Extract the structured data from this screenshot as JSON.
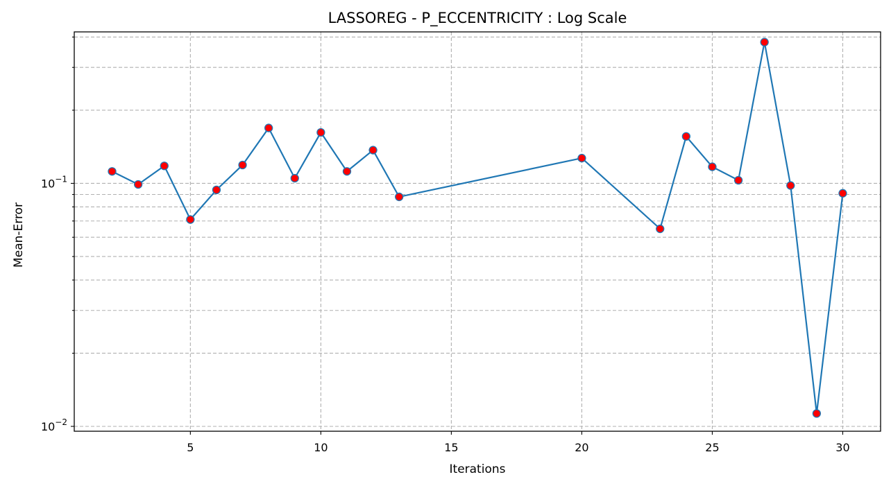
{
  "chart_data": {
    "type": "line",
    "title": "LASSOREG - P_ECCENTRICITY : Log Scale",
    "xlabel": "Iterations",
    "ylabel": "Mean-Error",
    "yscale": "log",
    "xlim": [
      0.55,
      31.45
    ],
    "ylim": [
      0.00955,
      0.42
    ],
    "x_ticks": [
      5,
      10,
      15,
      20,
      25,
      30
    ],
    "y_major_ticks": [
      0.01,
      0.1
    ],
    "y_major_tick_labels": [
      {
        "base": "10",
        "exp": "−2"
      },
      {
        "base": "10",
        "exp": "−1"
      }
    ],
    "y_minor_ticks": [
      0.02,
      0.03,
      0.04,
      0.05,
      0.06,
      0.07,
      0.08,
      0.09,
      0.2,
      0.3,
      0.4
    ],
    "grid": true,
    "line_color": "#1f77b4",
    "marker_face_color": "#ff0000",
    "series": [
      {
        "x": [
          2,
          3,
          4,
          5,
          6,
          7,
          8,
          9,
          10,
          11,
          12,
          13,
          20,
          23,
          24,
          25,
          26,
          27,
          28,
          29,
          30
        ],
        "y": [
          0.112,
          0.099,
          0.118,
          0.071,
          0.094,
          0.119,
          0.169,
          0.105,
          0.162,
          0.112,
          0.137,
          0.088,
          0.127,
          0.065,
          0.156,
          0.117,
          0.103,
          0.381,
          0.098,
          0.0113,
          0.091
        ]
      }
    ]
  }
}
